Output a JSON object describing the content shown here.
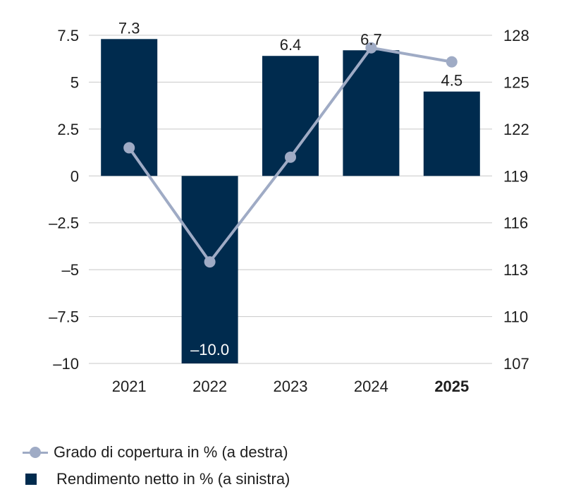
{
  "chart_data": {
    "type": "bar",
    "categories": [
      "2021",
      "2022",
      "2023",
      "2024",
      "2025"
    ],
    "highlight_category": "2025",
    "series": [
      {
        "name": "Rendimento netto in % (a sinistra)",
        "type": "bar",
        "axis": "left",
        "values": [
          7.3,
          -10.0,
          6.4,
          6.7,
          4.5
        ],
        "labels": [
          "7.3",
          "–10.0",
          "6.4",
          "6.7",
          "4.5"
        ],
        "color": "#002b4e"
      },
      {
        "name": "Grado di copertura in % (a destra)",
        "type": "line",
        "axis": "right",
        "values": [
          120.8,
          113.5,
          120.2,
          127.2,
          126.3
        ],
        "color": "#9fabc5"
      }
    ],
    "y_left": {
      "min": -10,
      "max": 7.5,
      "ticks": [
        7.5,
        5,
        2.5,
        0,
        -2.5,
        -5,
        -7.5,
        -10
      ],
      "tick_labels": [
        "7.5",
        "5",
        "2.5",
        "0",
        "–2.5",
        "–5",
        "–7.5",
        "–10"
      ]
    },
    "y_right": {
      "min": 107,
      "max": 128,
      "ticks": [
        128,
        125,
        122,
        119,
        116,
        113,
        110,
        107
      ],
      "tick_labels": [
        "128",
        "125",
        "122",
        "119",
        "116",
        "113",
        "110",
        "107"
      ]
    },
    "grid": true,
    "legend_position": "bottom-left"
  }
}
